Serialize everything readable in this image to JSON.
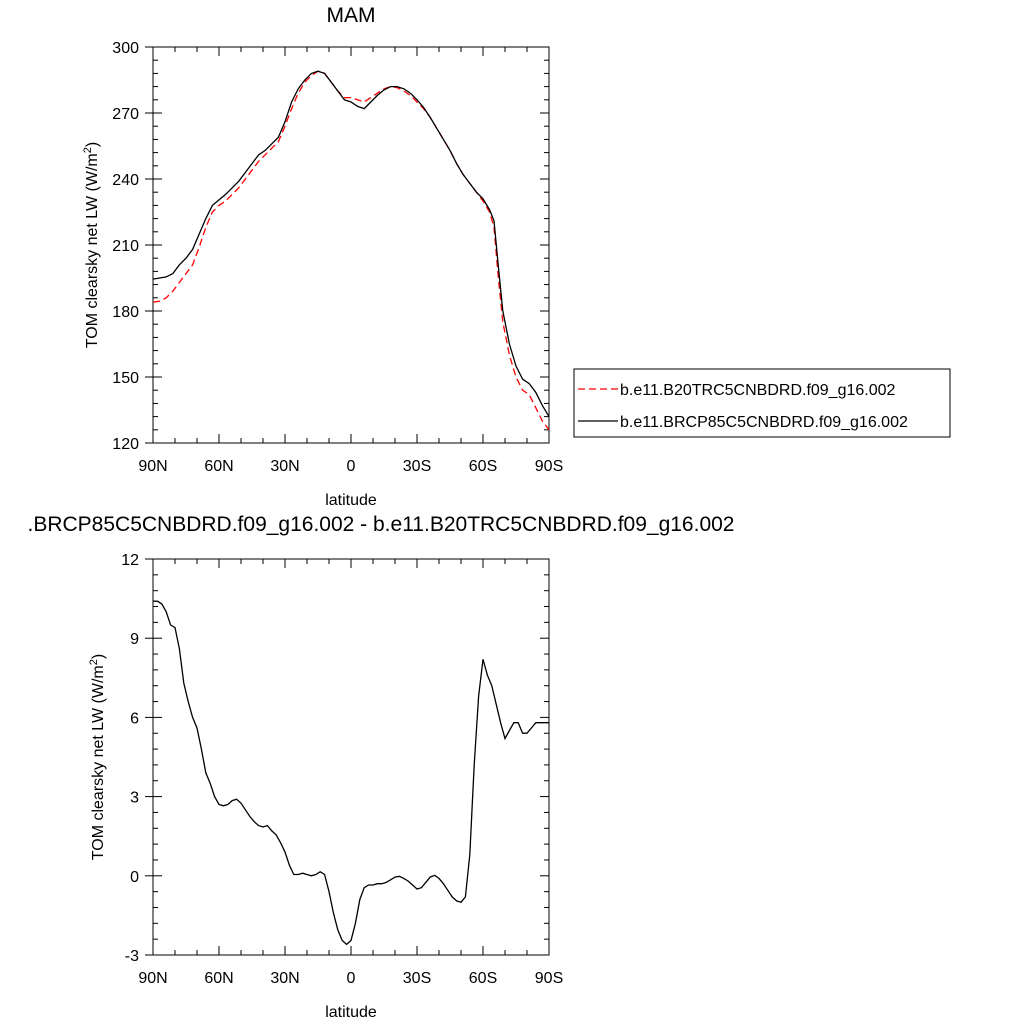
{
  "chart_data": [
    {
      "type": "line",
      "title": "MAM",
      "xlabel": "latitude",
      "ylabel": "TOM clearsky net LW (W/m",
      "ylabel_sup": "2",
      "ylabel_end": ")",
      "xlim": [
        90,
        -90
      ],
      "ylim": [
        120,
        300
      ],
      "x_ticks": [
        90,
        60,
        30,
        0,
        -30,
        -60,
        -90
      ],
      "x_tick_labels": [
        "90N",
        "60N",
        "30N",
        "0",
        "30S",
        "60S",
        "90S"
      ],
      "y_ticks": [
        120,
        150,
        180,
        210,
        240,
        270,
        300
      ],
      "y_tick_labels": [
        "120",
        "150",
        "180",
        "210",
        "240",
        "270",
        "300"
      ],
      "legend_position": "right",
      "series": [
        {
          "name": "b.e11.B20TRC5CNBDRD.f09_g16.002",
          "color": "#ff0000",
          "dash": "dashed",
          "x": [
            90,
            87,
            84,
            81,
            78,
            75,
            72,
            69,
            66,
            63,
            60,
            57,
            54,
            51,
            48,
            45,
            42,
            39,
            36,
            33,
            30,
            27,
            24,
            21,
            18,
            15,
            12,
            9,
            6,
            3,
            0,
            -3,
            -6,
            -9,
            -12,
            -15,
            -18,
            -21,
            -24,
            -27,
            -30,
            -33,
            -36,
            -39,
            -42,
            -45,
            -48,
            -51,
            -54,
            -57,
            -60,
            -63,
            -65,
            -67,
            -69,
            -72,
            -75,
            -78,
            -81,
            -84,
            -87,
            -90
          ],
          "y": [
            184,
            184.5,
            186,
            189,
            193,
            197,
            201,
            209,
            218,
            225,
            228,
            230,
            233,
            236,
            240,
            244,
            248,
            251,
            254,
            257,
            264,
            272,
            279,
            284,
            287,
            289,
            288,
            284,
            280,
            277,
            277,
            276,
            275,
            277,
            279,
            281,
            282,
            281.5,
            280,
            278,
            275,
            272,
            268,
            263,
            258,
            253,
            247,
            242,
            238,
            234,
            230,
            225,
            218,
            195,
            175,
            160,
            150,
            144,
            142,
            136,
            130,
            126
          ]
        },
        {
          "name": "b.e11.BRCP85C5CNBDRD.f09_g16.002",
          "color": "#000000",
          "dash": "solid",
          "x": [
            90,
            87,
            84,
            81,
            78,
            75,
            72,
            69,
            66,
            63,
            60,
            57,
            54,
            51,
            48,
            45,
            42,
            39,
            36,
            33,
            30,
            27,
            24,
            21,
            18,
            15,
            12,
            9,
            6,
            3,
            0,
            -3,
            -6,
            -9,
            -12,
            -15,
            -18,
            -21,
            -24,
            -27,
            -30,
            -33,
            -36,
            -39,
            -42,
            -45,
            -48,
            -51,
            -54,
            -57,
            -60,
            -63,
            -65,
            -67,
            -69,
            -72,
            -75,
            -78,
            -81,
            -84,
            -87,
            -90
          ],
          "y": [
            194.5,
            195,
            195.5,
            197,
            201,
            204,
            208,
            215,
            222,
            228,
            230.5,
            233,
            236,
            239,
            243,
            247,
            251,
            253,
            256,
            259,
            266,
            275,
            281,
            285,
            288,
            289,
            288,
            284,
            280,
            276,
            275,
            273,
            272,
            275,
            278,
            280.5,
            282,
            282,
            281,
            279,
            276,
            272.5,
            268,
            263,
            258,
            253,
            247,
            242,
            238,
            234,
            231,
            226,
            221,
            200,
            180,
            165,
            155,
            149,
            147,
            143,
            137,
            132
          ]
        }
      ]
    },
    {
      "type": "line",
      "title": ".BRCP85C5CNBDRD.f09_g16.002 - b.e11.B20TRC5CNBDRD.f09_g16.002",
      "xlabel": "latitude",
      "ylabel": "TOM clearsky net LW (W/m",
      "ylabel_sup": "2",
      "ylabel_end": ")",
      "xlim": [
        90,
        -90
      ],
      "ylim": [
        -3,
        12
      ],
      "x_ticks": [
        90,
        60,
        30,
        0,
        -30,
        -60,
        -90
      ],
      "x_tick_labels": [
        "90N",
        "60N",
        "30N",
        "0",
        "30S",
        "60S",
        "90S"
      ],
      "y_ticks": [
        -3,
        0,
        3,
        6,
        9,
        12
      ],
      "y_tick_labels": [
        "-3",
        "0",
        "3",
        "6",
        "9",
        "12"
      ],
      "series": [
        {
          "color": "#000000",
          "dash": "solid",
          "x": [
            90,
            88,
            86,
            84,
            82,
            80,
            78,
            76,
            74,
            72,
            70,
            68,
            66,
            64,
            62,
            60,
            58,
            56,
            54,
            52,
            50,
            48,
            46,
            44,
            42,
            40,
            38,
            36,
            34,
            32,
            30,
            28,
            26,
            24,
            22,
            20,
            18,
            16,
            14,
            12,
            10,
            8,
            6,
            4,
            2,
            0,
            -2,
            -4,
            -6,
            -8,
            -10,
            -12,
            -14,
            -16,
            -18,
            -20,
            -22,
            -24,
            -26,
            -28,
            -30,
            -32,
            -34,
            -36,
            -38,
            -40,
            -42,
            -44,
            -46,
            -48,
            -50,
            -52,
            -54,
            -56,
            -58,
            -60,
            -62,
            -64,
            -66,
            -68,
            -70,
            -72,
            -74,
            -76,
            -78,
            -80,
            -82,
            -84,
            -86,
            -88,
            -90
          ],
          "y": [
            10.4,
            10.4,
            10.3,
            10.0,
            9.5,
            9.4,
            8.6,
            7.3,
            6.6,
            6.0,
            5.6,
            4.8,
            3.9,
            3.5,
            3.0,
            2.7,
            2.65,
            2.7,
            2.85,
            2.9,
            2.75,
            2.5,
            2.25,
            2.05,
            1.9,
            1.85,
            1.9,
            1.7,
            1.55,
            1.25,
            0.9,
            0.4,
            0.05,
            0.05,
            0.1,
            0.05,
            0.0,
            0.05,
            0.15,
            0.05,
            -0.6,
            -1.4,
            -2.05,
            -2.45,
            -2.6,
            -2.45,
            -1.8,
            -0.9,
            -0.45,
            -0.35,
            -0.35,
            -0.3,
            -0.3,
            -0.25,
            -0.15,
            -0.05,
            -0.02,
            -0.1,
            -0.2,
            -0.35,
            -0.5,
            -0.45,
            -0.25,
            -0.05,
            0.02,
            -0.1,
            -0.3,
            -0.55,
            -0.8,
            -0.95,
            -1.0,
            -0.8,
            0.8,
            4.2,
            6.8,
            8.2,
            7.6,
            7.2,
            6.5,
            5.8,
            5.2,
            5.5,
            5.8,
            5.8,
            5.4,
            5.4,
            5.6,
            5.8,
            5.8,
            5.8,
            5.8
          ]
        }
      ]
    }
  ]
}
